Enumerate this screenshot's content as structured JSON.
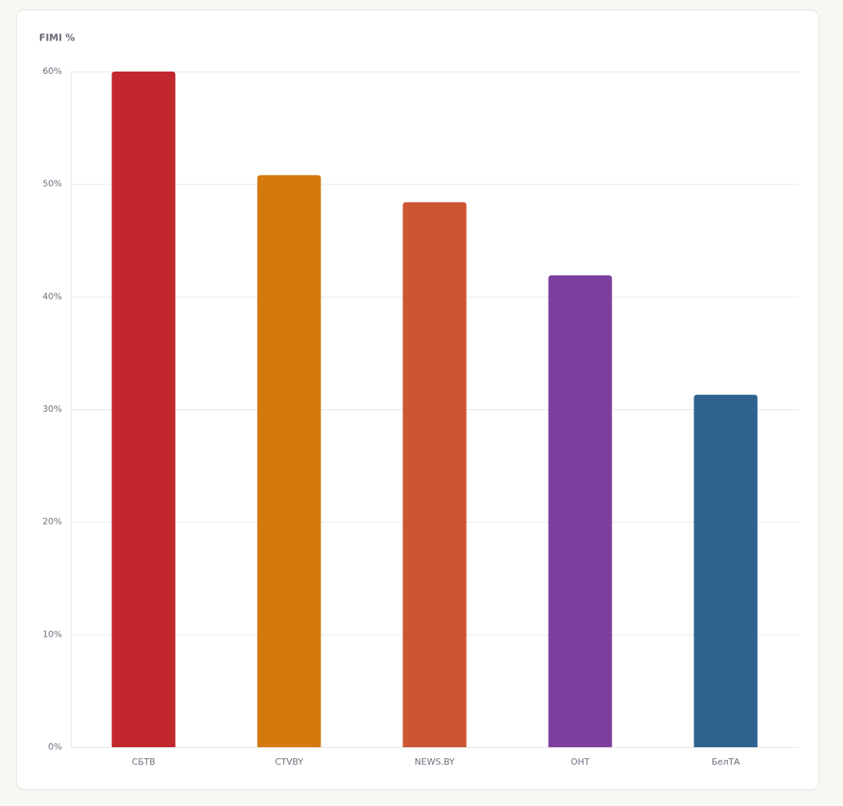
{
  "chart_data": {
    "type": "bar",
    "title": "FIMI %",
    "categories": [
      "СБТВ",
      "CTVBY",
      "NEWS.BY",
      "ОНТ",
      "БелТА"
    ],
    "values": [
      60,
      50.8,
      48.4,
      41.9,
      31.3
    ],
    "colors": [
      "#c1272d",
      "#d4790e",
      "#cc5533",
      "#7d3f9e",
      "#2e6390"
    ],
    "ylim": [
      0,
      60
    ],
    "yticks": [
      {
        "value": 0,
        "label": "0%"
      },
      {
        "value": 10,
        "label": "10%"
      },
      {
        "value": 20,
        "label": "20%"
      },
      {
        "value": 30,
        "label": "30%"
      },
      {
        "value": 40,
        "label": "40%"
      },
      {
        "value": 50,
        "label": "50%"
      },
      {
        "value": 60,
        "label": "60%"
      }
    ],
    "grid": true
  }
}
